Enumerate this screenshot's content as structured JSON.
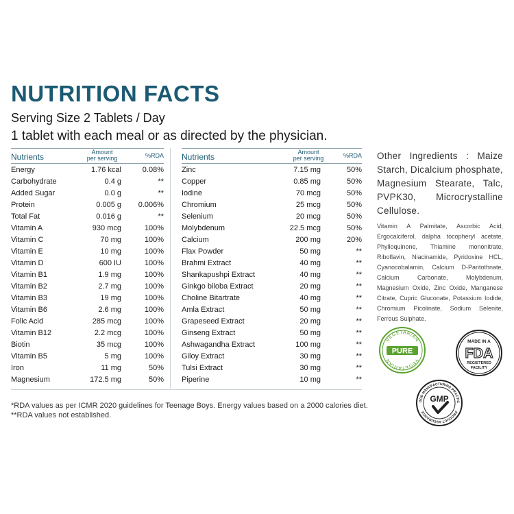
{
  "title": "NUTRITION FACTS",
  "serving_size": "Serving Size 2 Tablets / Day",
  "directions": "1 tablet with each meal or as directed by the physician.",
  "table_header": {
    "nutrients": "Nutrients",
    "amount_line1": "Amount",
    "amount_line2": "per serving",
    "rda": "%RDA"
  },
  "left_rows": [
    {
      "name": "Energy",
      "amount": "1.76 kcal",
      "rda": "0.08%"
    },
    {
      "name": "Carbohydrate",
      "amount": "0.4 g",
      "rda": "**"
    },
    {
      "name": "Added Sugar",
      "amount": "0.0 g",
      "rda": "**"
    },
    {
      "name": "Protein",
      "amount": "0.005 g",
      "rda": "0.006%"
    },
    {
      "name": "Total Fat",
      "amount": "0.016 g",
      "rda": "**"
    },
    {
      "name": "Vitamin A",
      "amount": "930 mcg",
      "rda": "100%"
    },
    {
      "name": "Vitamin C",
      "amount": "70 mg",
      "rda": "100%"
    },
    {
      "name": "Vitamin E",
      "amount": "10 mg",
      "rda": "100%"
    },
    {
      "name": "Vitamin D",
      "amount": "600 IU",
      "rda": "100%"
    },
    {
      "name": "Vitamin B1",
      "amount": "1.9 mg",
      "rda": "100%"
    },
    {
      "name": "Vitamin B2",
      "amount": "2.7 mg",
      "rda": "100%"
    },
    {
      "name": "Vitamin B3",
      "amount": "19 mg",
      "rda": "100%"
    },
    {
      "name": "Vitamin B6",
      "amount": "2.6 mg",
      "rda": "100%"
    },
    {
      "name": "Folic Acid",
      "amount": "285 mcg",
      "rda": "100%"
    },
    {
      "name": "Vitamin B12",
      "amount": "2.2 mcg",
      "rda": "100%"
    },
    {
      "name": "Biotin",
      "amount": "35 mcg",
      "rda": "100%"
    },
    {
      "name": "Vitamin B5",
      "amount": "5 mg",
      "rda": "100%"
    },
    {
      "name": "Iron",
      "amount": "11 mg",
      "rda": "50%"
    },
    {
      "name": "Magnesium",
      "amount": "172.5 mg",
      "rda": "50%"
    }
  ],
  "right_rows": [
    {
      "name": "Zinc",
      "amount": "7.15 mg",
      "rda": "50%"
    },
    {
      "name": "Copper",
      "amount": "0.85 mg",
      "rda": "50%"
    },
    {
      "name": "Iodine",
      "amount": "70 mcg",
      "rda": "50%"
    },
    {
      "name": "Chromium",
      "amount": "25 mcg",
      "rda": "50%"
    },
    {
      "name": "Selenium",
      "amount": "20 mcg",
      "rda": "50%"
    },
    {
      "name": "Molybdenum",
      "amount": "22.5 mcg",
      "rda": "50%"
    },
    {
      "name": "Calcium",
      "amount": "200 mg",
      "rda": "20%"
    },
    {
      "name": "Flax Powder",
      "amount": "50 mg",
      "rda": "**"
    },
    {
      "name": "Brahmi Extract",
      "amount": "40 mg",
      "rda": "**"
    },
    {
      "name": "Shankapushpi Extract",
      "amount": "40 mg",
      "rda": "**"
    },
    {
      "name": "Ginkgo biloba Extract",
      "amount": "20 mg",
      "rda": "**"
    },
    {
      "name": "Choline Bitartrate",
      "amount": "40 mg",
      "rda": "**"
    },
    {
      "name": "Amla Extract",
      "amount": "50 mg",
      "rda": "**"
    },
    {
      "name": "Grapeseed Extract",
      "amount": "20 mg",
      "rda": "**"
    },
    {
      "name": "Ginseng Extract",
      "amount": "50 mg",
      "rda": "**"
    },
    {
      "name": "Ashwagandha Extract",
      "amount": "100 mg",
      "rda": "**"
    },
    {
      "name": "Giloy Extract",
      "amount": "30 mg",
      "rda": "**"
    },
    {
      "name": "Tulsi Extract",
      "amount": "30 mg",
      "rda": "**"
    },
    {
      "name": "Piperine",
      "amount": "10 mg",
      "rda": "**"
    }
  ],
  "footnote_1": "*RDA values as per ICMR 2020 guidelines for Teenage Boys. Energy values based on a 2000 calories diet.",
  "footnote_2": "**RDA values not established.",
  "other_ingredients": "Other Ingredients : Maize Starch, Dicalcium phosphate, Magnesium Stearate, Talc, PVPK30, Microcrystalline Cellulose.",
  "ingredient_list": "Vitamin A Palmitate, Ascorbic Acid, Ergocalciferol, dalpha tocopheryl acetate, Phylloquinone, Thiamine mononitrate, Riboflavin, Niacinamide, Pyridoxine HCL, Cyanocobalamin, Calcium D-Pantothnate, Calcium Carbonate, Molybdenum, Magnesium Oxide, Zinc Oxide, Manganese Citrate, Cupric Gluconate, Potassium Iodide, Chromium Picolinate, Sodium Selenite, Ferrous Sulphate.",
  "badges": {
    "vegetarian": {
      "text_top": "VEGETARIAN",
      "text_center": "PURE",
      "text_bottom": "VEGETARIAN",
      "color": "#5aa32e"
    },
    "fda": {
      "text_top": "MADE IN A",
      "text_center": "FDA",
      "text_bottom1": "REGISTERED",
      "text_bottom2": "FACILITY",
      "color": "#222222"
    },
    "gmp": {
      "text_arc_top": "GOOD MANUFACTURING PRACTICE",
      "text_center": "GMP",
      "text_arc_bottom": "PRODUCT ASSURANCE",
      "color": "#222222"
    }
  },
  "colors": {
    "title": "#1b5a72",
    "text": "#1a1a1a"
  }
}
